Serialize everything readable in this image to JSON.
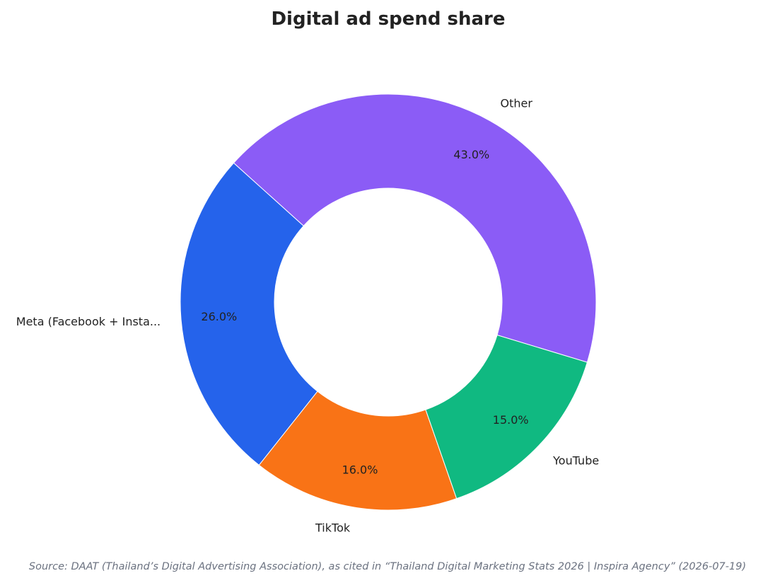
{
  "chart_data": {
    "type": "pie",
    "title": "Digital ad spend share",
    "donut": true,
    "start_angle_deg": 138,
    "direction": "counterclockwise",
    "slices": [
      {
        "label": "Meta (Facebook + Insta...",
        "value": 26.0,
        "pct_label": "26.0%",
        "color": "#2563eb"
      },
      {
        "label": "TikTok",
        "value": 16.0,
        "pct_label": "16.0%",
        "color": "#f97316"
      },
      {
        "label": "YouTube",
        "value": 15.0,
        "pct_label": "15.0%",
        "color": "#10b981"
      },
      {
        "label": "Other",
        "value": 43.0,
        "pct_label": "43.0%",
        "color": "#8b5cf6"
      }
    ],
    "source": "Source: DAAT (Thailand’s Digital Advertising Association), as cited in “Thailand Digital Marketing Stats 2026 | Inspira Agency” (2026-07-19)"
  }
}
